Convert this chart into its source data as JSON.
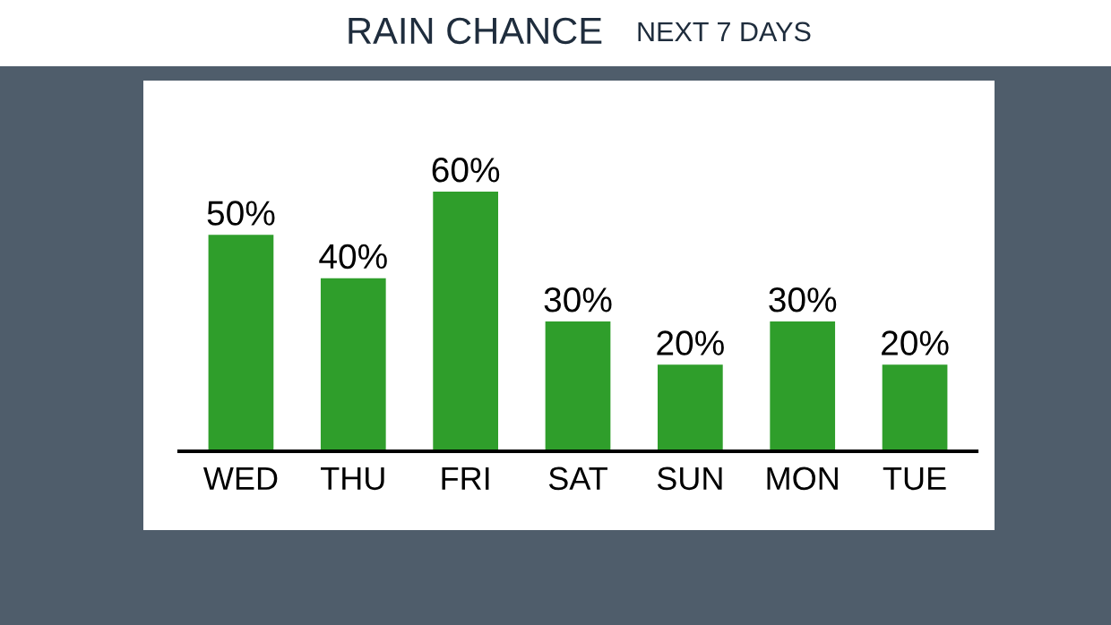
{
  "chart_data": {
    "type": "bar",
    "title": "RAIN CHANCE",
    "subtitle": "NEXT 7 DAYS",
    "categories": [
      "WED",
      "THU",
      "FRI",
      "SAT",
      "SUN",
      "MON",
      "TUE"
    ],
    "values": [
      50,
      40,
      60,
      30,
      20,
      30,
      20
    ],
    "value_labels": [
      "50%",
      "40%",
      "60%",
      "30%",
      "20%",
      "30%",
      "20%"
    ],
    "color": "#2f9e2b",
    "grid": false,
    "legend": false,
    "tick_labels": "x"
  }
}
